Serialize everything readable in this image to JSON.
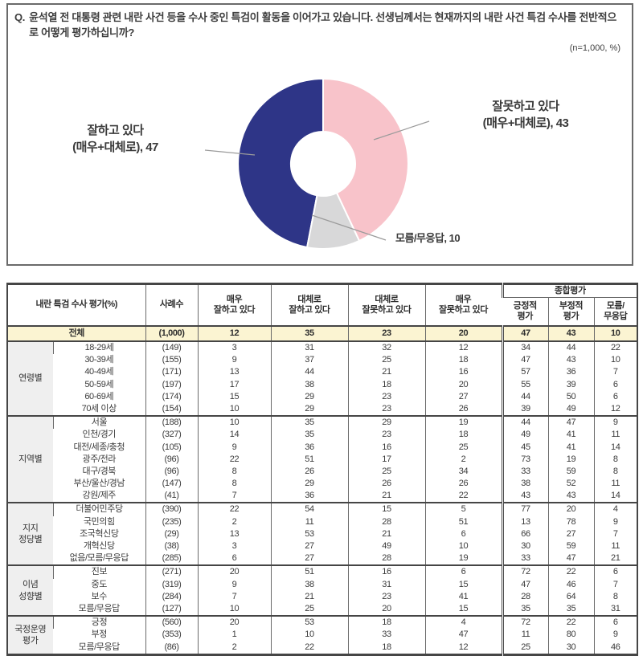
{
  "question_box": {
    "marker": "Q.",
    "question": "윤석열 전 대통령 관련 내란 사건 등을 수사 중인 특검이 활동을 이어가고 있습니다. 선생님께서는 현재까지의 내란 사건 특검 수사를 전반적으로 어떻게 평가하십니까?",
    "sample_note": "(n=1,000, %)"
  },
  "chart_data": {
    "type": "pie",
    "subtype": "donut",
    "title": "내란 특검 수사 평가",
    "labels": [
      "잘하고 있다 (매우+대체로)",
      "잘못하고 있다 (매우+대체로)",
      "모름/무응답"
    ],
    "values": [
      47,
      43,
      10
    ],
    "colors": [
      "#2E3587",
      "#F8C3CA",
      "#D8D8D9"
    ],
    "slices_clockwise_from_top": [
      {
        "label": "잘못하고 있다 (매우+대체로)",
        "value": 43,
        "color": "#F8C3CA"
      },
      {
        "label": "모름/무응답",
        "value": 10,
        "color": "#D8D8D9"
      },
      {
        "label": "잘하고 있다 (매우+대체로)",
        "value": 47,
        "color": "#2E3587"
      }
    ],
    "callouts": {
      "positive": {
        "line1": "잘하고 있다",
        "line2": "(매우+대체로), 47"
      },
      "negative": {
        "line1": "잘못하고 있다",
        "line2": "(매우+대체로), 43"
      },
      "dk": {
        "text": "모름/무응답, 10"
      }
    },
    "n_note": "(n=1,000, %)"
  },
  "table": {
    "title_col": "내란 특검 수사 평가(%)",
    "n_col": "사례수",
    "answer_cols": [
      "매우\n잘하고 있다",
      "대체로\n잘하고 있다",
      "대체로\n잘못하고 있다",
      "매우\n잘못하고 있다"
    ],
    "summary_group": "종합평가",
    "summary_cols": [
      "긍정적\n평가",
      "부정적\n평가",
      "모름/\n무응답"
    ],
    "total": {
      "label": "전체",
      "n": "(1,000)",
      "values": [
        12,
        35,
        23,
        20,
        47,
        43,
        10
      ]
    },
    "groups": [
      {
        "group": "연령별",
        "rows": [
          {
            "label": "18-29세",
            "n": "(149)",
            "values": [
              3,
              31,
              32,
              12,
              34,
              44,
              22
            ]
          },
          {
            "label": "30-39세",
            "n": "(155)",
            "values": [
              9,
              37,
              25,
              18,
              47,
              43,
              10
            ]
          },
          {
            "label": "40-49세",
            "n": "(171)",
            "values": [
              13,
              44,
              21,
              16,
              57,
              36,
              7
            ]
          },
          {
            "label": "50-59세",
            "n": "(197)",
            "values": [
              17,
              38,
              18,
              20,
              55,
              39,
              6
            ]
          },
          {
            "label": "60-69세",
            "n": "(174)",
            "values": [
              15,
              29,
              23,
              27,
              44,
              50,
              6
            ]
          },
          {
            "label": "70세 이상",
            "n": "(154)",
            "values": [
              10,
              29,
              23,
              26,
              39,
              49,
              12
            ]
          }
        ]
      },
      {
        "group": "지역별",
        "rows": [
          {
            "label": "서울",
            "n": "(188)",
            "values": [
              10,
              35,
              29,
              19,
              44,
              47,
              9
            ]
          },
          {
            "label": "인천/경기",
            "n": "(327)",
            "values": [
              14,
              35,
              23,
              18,
              49,
              41,
              11
            ]
          },
          {
            "label": "대전/세종/충청",
            "n": "(105)",
            "values": [
              9,
              36,
              16,
              25,
              45,
              41,
              14
            ]
          },
          {
            "label": "광주/전라",
            "n": "(96)",
            "values": [
              22,
              51,
              17,
              2,
              73,
              19,
              8
            ]
          },
          {
            "label": "대구/경북",
            "n": "(96)",
            "values": [
              8,
              26,
              25,
              34,
              33,
              59,
              8
            ]
          },
          {
            "label": "부산/울산/경남",
            "n": "(147)",
            "values": [
              8,
              29,
              26,
              26,
              38,
              52,
              11
            ]
          },
          {
            "label": "강원/제주",
            "n": "(41)",
            "values": [
              7,
              36,
              21,
              22,
              43,
              43,
              14
            ]
          }
        ]
      },
      {
        "group": "지지\n정당별",
        "rows": [
          {
            "label": "더불어민주당",
            "n": "(390)",
            "values": [
              22,
              54,
              15,
              5,
              77,
              20,
              4
            ]
          },
          {
            "label": "국민의힘",
            "n": "(235)",
            "values": [
              2,
              11,
              28,
              51,
              13,
              78,
              9
            ]
          },
          {
            "label": "조국혁신당",
            "n": "(29)",
            "values": [
              13,
              53,
              21,
              6,
              66,
              27,
              7
            ]
          },
          {
            "label": "개혁신당",
            "n": "(38)",
            "values": [
              3,
              27,
              49,
              10,
              30,
              59,
              11
            ]
          },
          {
            "label": "없음/모름/무응답",
            "n": "(285)",
            "values": [
              6,
              27,
              28,
              19,
              33,
              47,
              21
            ]
          }
        ]
      },
      {
        "group": "이념\n성향별",
        "rows": [
          {
            "label": "진보",
            "n": "(271)",
            "values": [
              20,
              51,
              16,
              6,
              72,
              22,
              6
            ]
          },
          {
            "label": "중도",
            "n": "(319)",
            "values": [
              9,
              38,
              31,
              15,
              47,
              46,
              7
            ]
          },
          {
            "label": "보수",
            "n": "(284)",
            "values": [
              7,
              21,
              23,
              41,
              28,
              64,
              8
            ]
          },
          {
            "label": "모름/무응답",
            "n": "(127)",
            "values": [
              10,
              25,
              20,
              15,
              35,
              35,
              31
            ]
          }
        ]
      },
      {
        "group": "국정운영\n평가",
        "rows": [
          {
            "label": "긍정",
            "n": "(560)",
            "values": [
              20,
              53,
              18,
              4,
              72,
              22,
              6
            ]
          },
          {
            "label": "부정",
            "n": "(353)",
            "values": [
              1,
              10,
              33,
              47,
              11,
              80,
              9
            ]
          },
          {
            "label": "모름/무응답",
            "n": "(86)",
            "values": [
              2,
              22,
              18,
              12,
              25,
              30,
              46
            ]
          }
        ]
      }
    ]
  }
}
